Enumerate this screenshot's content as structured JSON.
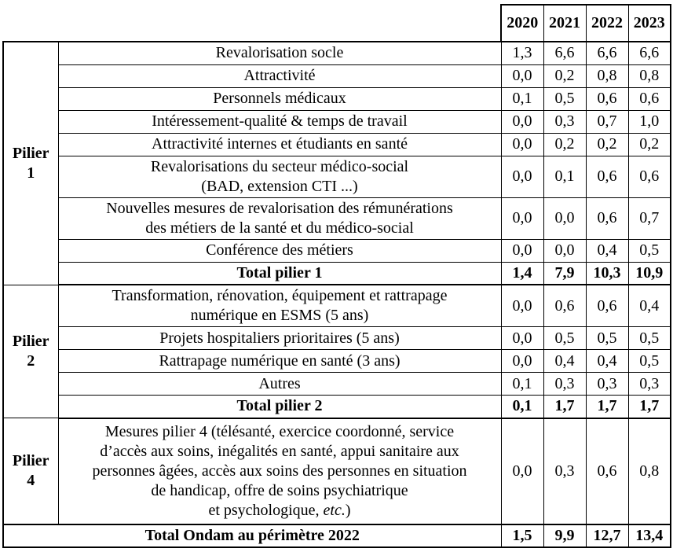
{
  "colors": {
    "border": "#000000",
    "text": "#000000",
    "background": "#ffffff"
  },
  "header": {
    "years": [
      "2020",
      "2021",
      "2022",
      "2023"
    ]
  },
  "pilier1": {
    "label": "Pilier\n1",
    "rows": [
      {
        "label": "Revalorisation socle",
        "values": [
          "1,3",
          "6,6",
          "6,6",
          "6,6"
        ]
      },
      {
        "label": "Attractivité",
        "values": [
          "0,0",
          "0,2",
          "0,8",
          "0,8"
        ]
      },
      {
        "label": "Personnels médicaux",
        "values": [
          "0,1",
          "0,5",
          "0,6",
          "0,6"
        ]
      },
      {
        "label": "Intéressement-qualité & temps de travail",
        "values": [
          "0,0",
          "0,3",
          "0,7",
          "1,0"
        ]
      },
      {
        "label": "Attractivité internes et étudiants en santé",
        "values": [
          "0,0",
          "0,2",
          "0,2",
          "0,2"
        ]
      },
      {
        "label": "Revalorisations du secteur médico-social\n(BAD, extension CTI ...)",
        "values": [
          "0,0",
          "0,1",
          "0,6",
          "0,6"
        ]
      },
      {
        "label": "Nouvelles mesures de revalorisation des rémunérations\ndes métiers de la santé et du médico-social",
        "values": [
          "0,0",
          "0,0",
          "0,6",
          "0,7"
        ]
      },
      {
        "label": "Conférence des métiers",
        "values": [
          "0,0",
          "0,0",
          "0,4",
          "0,5"
        ]
      }
    ],
    "total": {
      "label": "Total pilier 1",
      "values": [
        "1,4",
        "7,9",
        "10,3",
        "10,9"
      ]
    }
  },
  "pilier2": {
    "label": "Pilier\n2",
    "rows": [
      {
        "label": "Transformation, rénovation, équipement et rattrapage\nnumérique en ESMS (5 ans)",
        "values": [
          "0,0",
          "0,6",
          "0,6",
          "0,4"
        ]
      },
      {
        "label": "Projets hospitaliers prioritaires (5 ans)",
        "values": [
          "0,0",
          "0,5",
          "0,5",
          "0,5"
        ]
      },
      {
        "label": "Rattrapage numérique en santé (3 ans)",
        "values": [
          "0,0",
          "0,4",
          "0,4",
          "0,5"
        ]
      },
      {
        "label": "Autres",
        "values": [
          "0,1",
          "0,3",
          "0,3",
          "0,3"
        ]
      }
    ],
    "total": {
      "label": "Total pilier 2",
      "values": [
        "0,1",
        "1,7",
        "1,7",
        "1,7"
      ]
    }
  },
  "pilier4": {
    "label": "Pilier\n4",
    "row": {
      "label_main": "Mesures pilier 4 (télésanté, exercice coordonné, service\nd’accès aux soins, inégalités en santé, appui sanitaire aux\npersonnes âgées, accès aux soins des personnes en situation\nde handicap, offre de soins psychiatrique\net psychologique, ",
      "label_italic": "etc.",
      "label_suffix": ")",
      "values": [
        "0,0",
        "0,3",
        "0,6",
        "0,8"
      ]
    }
  },
  "grand_total": {
    "label": "Total Ondam au périmètre 2022",
    "values": [
      "1,5",
      "9,9",
      "12,7",
      "13,4"
    ]
  }
}
